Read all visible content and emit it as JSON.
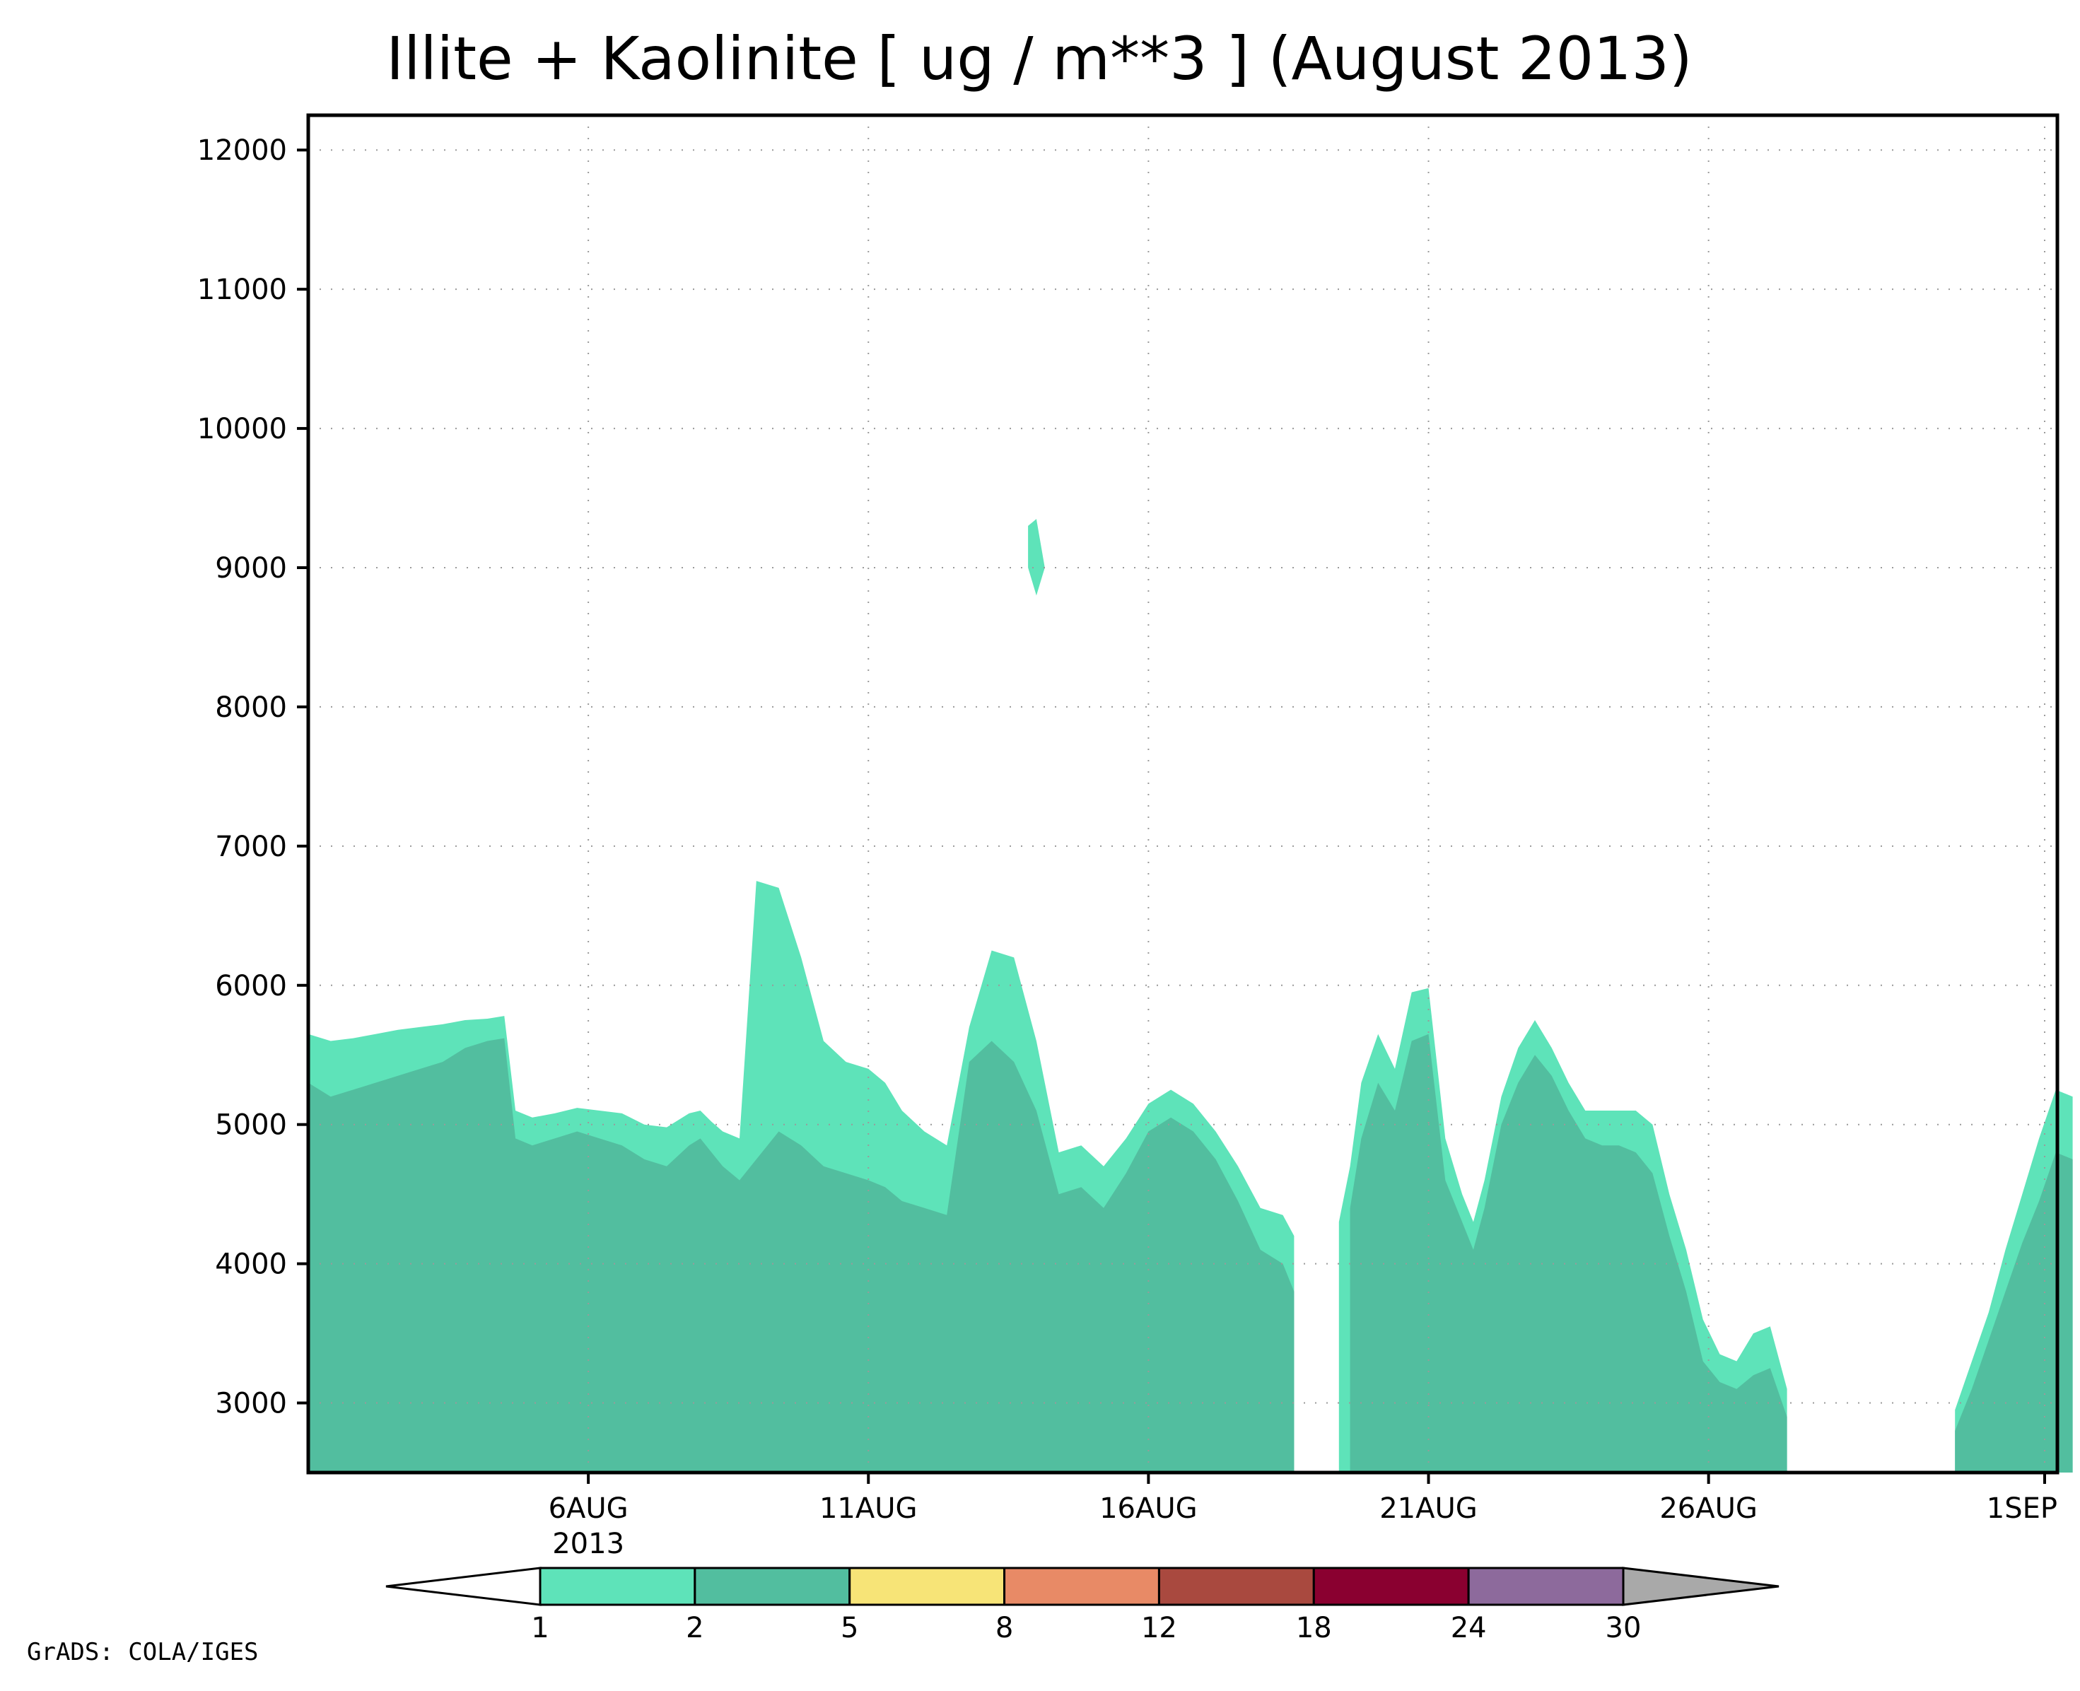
{
  "chart_data": {
    "type": "heatmap",
    "title": "Illite + Kaolinite [ ug / m**3 ] (August 2013)",
    "xlabel": "",
    "ylabel": "",
    "x_range": [
      "2013-08-01",
      "2013-09-01"
    ],
    "ylim": [
      2500,
      12250
    ],
    "y_ticks": [
      3000,
      4000,
      5000,
      6000,
      7000,
      8000,
      9000,
      10000,
      11000,
      12000
    ],
    "y_tick_labels": [
      "3000",
      "4000",
      "5000",
      "6000",
      "7000",
      "8000",
      "9000",
      "10000",
      "11000",
      "12000"
    ],
    "x_ticks": [
      {
        "date": "2013-08-06",
        "label": "6AUG",
        "sublabel": "2013"
      },
      {
        "date": "2013-08-11",
        "label": "11AUG",
        "sublabel": ""
      },
      {
        "date": "2013-08-16",
        "label": "16AUG",
        "sublabel": ""
      },
      {
        "date": "2013-08-21",
        "label": "21AUG",
        "sublabel": ""
      },
      {
        "date": "2013-08-26",
        "label": "26AUG",
        "sublabel": ""
      },
      {
        "date": "2013-09-01",
        "label": "1SEP",
        "sublabel": ""
      }
    ],
    "grid": true,
    "legend": {
      "placement": "bottom",
      "levels": [
        "1",
        "2",
        "5",
        "8",
        "12",
        "18",
        "24",
        "30"
      ],
      "colors": [
        "#ffffff",
        "#5ee3b9",
        "#52be9f",
        "#f7e477",
        "#e88a66",
        "#a9493f",
        "#8a0030",
        "#8d6a9c",
        "#a9a9a9"
      ]
    },
    "contour_bands": [
      {
        "min": 1,
        "max": 2,
        "color": "#5ee3b9",
        "regions": [
          {
            "t": [
              0.0,
              0.4,
              0.8,
              1.2,
              1.6,
              2.0,
              2.4,
              2.8,
              3.2,
              3.5,
              3.7,
              4.0,
              4.4,
              4.8,
              5.2,
              5.6,
              6.0,
              6.4,
              6.8,
              7.0,
              7.2,
              7.4,
              7.7,
              8.0,
              8.4,
              8.8,
              9.2,
              9.6,
              10.0,
              10.3,
              10.6,
              11.0,
              11.4,
              11.8,
              12.2,
              12.6,
              13.0,
              13.4,
              13.8,
              14.2,
              14.6,
              15.0,
              15.4,
              15.8,
              16.2,
              16.6,
              17.0,
              17.4,
              17.6
            ],
            "top": [
              5650,
              5600,
              5620,
              5650,
              5680,
              5700,
              5720,
              5750,
              5760,
              5780,
              5100,
              5050,
              5080,
              5120,
              5100,
              5080,
              5000,
              4980,
              5080,
              5100,
              5020,
              4950,
              4900,
              6750,
              6700,
              6200,
              5600,
              5450,
              5400,
              5300,
              5100,
              4950,
              4850,
              5700,
              6250,
              6200,
              5600,
              4800,
              4850,
              4700,
              4900,
              5150,
              5250,
              5150,
              4950,
              4700,
              4400,
              4350,
              4200
            ],
            "bottom": 2500
          },
          {
            "t": [
              18.4,
              18.6,
              18.8,
              19.1,
              19.4,
              19.7,
              20.0,
              20.3,
              20.6,
              20.8,
              21.0,
              21.3,
              21.6,
              21.9,
              22.2,
              22.5,
              22.8,
              23.1,
              23.4,
              23.7,
              24.0,
              24.3,
              24.6,
              24.9,
              25.2,
              25.5,
              25.8,
              26.1,
              26.4
            ],
            "top": [
              4300,
              4700,
              5300,
              5650,
              5400,
              5950,
              5980,
              4900,
              4500,
              4300,
              4600,
              5200,
              5550,
              5750,
              5550,
              5300,
              5100,
              5100,
              5100,
              5100,
              5000,
              4500,
              4100,
              3600,
              3350,
              3300,
              3500,
              3550,
              3100
            ],
            "bottom": 2500
          },
          {
            "t": [
              29.4,
              29.7,
              30.0,
              30.3,
              30.6,
              30.9,
              31.2,
              31.5
            ],
            "top": [
              2950,
              3300,
              3650,
              4100,
              4500,
              4900,
              5250,
              5200
            ],
            "bottom": 2500
          },
          {
            "t": [
              12.85,
              13.0,
              13.15,
              13.0,
              12.85
            ],
            "top": [
              9300,
              9350,
              9000,
              8800,
              9000
            ],
            "bottom": null
          }
        ]
      },
      {
        "min": 2,
        "max": 5,
        "color": "#52be9f",
        "regions": [
          {
            "t": [
              0.0,
              0.4,
              0.8,
              1.2,
              1.6,
              2.0,
              2.4,
              2.8,
              3.2,
              3.5,
              3.7,
              4.0,
              4.4,
              4.8,
              5.2,
              5.6,
              6.0,
              6.4,
              6.8,
              7.0,
              7.2,
              7.4,
              7.7,
              8.0,
              8.4,
              8.8,
              9.2,
              9.6,
              10.0,
              10.3,
              10.6,
              11.0,
              11.4,
              11.8,
              12.2,
              12.6,
              13.0,
              13.4,
              13.8,
              14.2,
              14.6,
              15.0,
              15.4,
              15.8,
              16.2,
              16.6,
              17.0,
              17.4,
              17.6
            ],
            "top": [
              5300,
              5200,
              5250,
              5300,
              5350,
              5400,
              5450,
              5550,
              5600,
              5620,
              4900,
              4850,
              4900,
              4950,
              4900,
              4850,
              4750,
              4700,
              4850,
              4900,
              4800,
              4700,
              4600,
              4750,
              4950,
              4850,
              4700,
              4650,
              4600,
              4550,
              4450,
              4400,
              4350,
              5450,
              5600,
              5450,
              5100,
              4500,
              4550,
              4400,
              4650,
              4950,
              5050,
              4950,
              4750,
              4450,
              4100,
              4000,
              3800
            ],
            "bottom": 2500
          },
          {
            "t": [
              18.6,
              18.8,
              19.1,
              19.4,
              19.7,
              20.0,
              20.3,
              20.6,
              20.8,
              21.0,
              21.3,
              21.6,
              21.9,
              22.2,
              22.5,
              22.8,
              23.1,
              23.4,
              23.7,
              24.0,
              24.3,
              24.6,
              24.9,
              25.2,
              25.5,
              25.8,
              26.1,
              26.4
            ],
            "top": [
              4400,
              4900,
              5300,
              5100,
              5600,
              5650,
              4600,
              4300,
              4100,
              4400,
              5000,
              5300,
              5500,
              5350,
              5100,
              4900,
              4850,
              4850,
              4800,
              4650,
              4200,
              3800,
              3300,
              3150,
              3100,
              3200,
              3250,
              2900
            ],
            "bottom": 2500
          },
          {
            "t": [
              29.4,
              29.7,
              30.0,
              30.3,
              30.6,
              30.9,
              31.2,
              31.5
            ],
            "top": [
              2800,
              3100,
              3450,
              3800,
              4150,
              4450,
              4800,
              4750
            ],
            "bottom": 2500
          }
        ]
      }
    ],
    "notes_text": "GrADS: COLA/IGES"
  }
}
